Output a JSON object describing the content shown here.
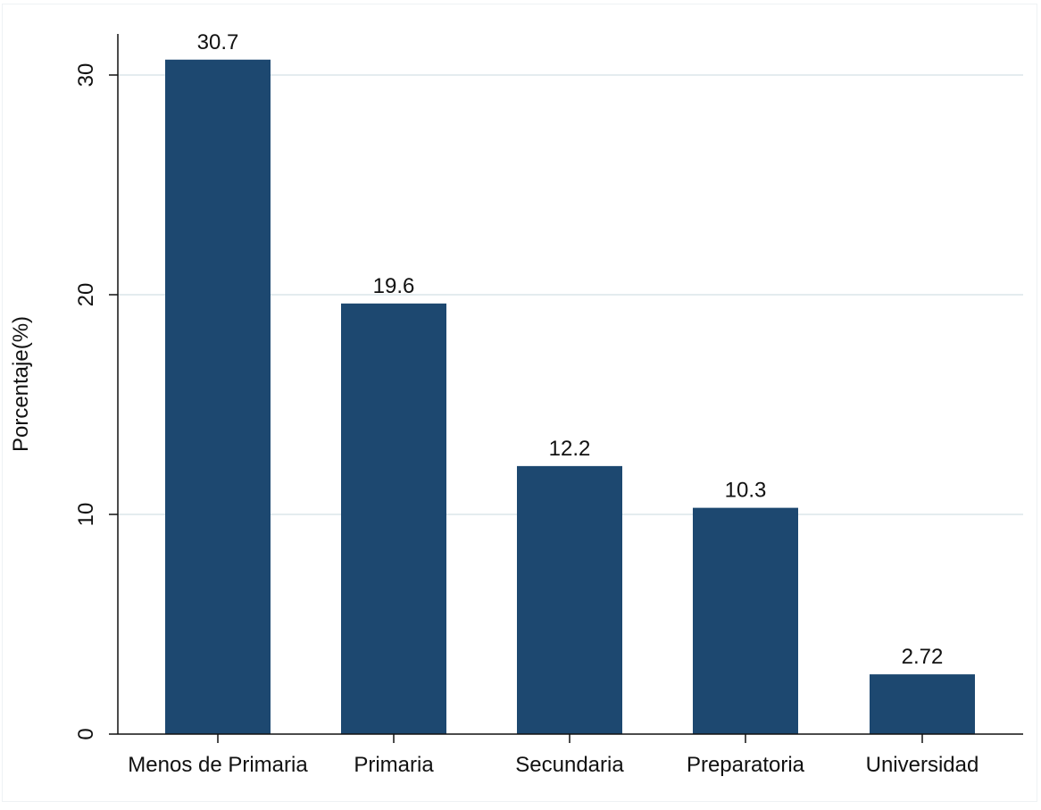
{
  "chart_data": {
    "type": "bar",
    "categories": [
      "Menos de Primaria",
      "Primaria",
      "Secundaria",
      "Preparatoria",
      "Universidad"
    ],
    "values": [
      30.7,
      19.6,
      12.2,
      10.3,
      2.72
    ],
    "value_labels": [
      "30.7",
      "19.6",
      "12.2",
      "10.3",
      "2.72"
    ],
    "title": "",
    "xlabel": "",
    "ylabel": "Porcentaje(%)",
    "ylim": [
      0,
      32
    ],
    "yticks": [
      0,
      10,
      20,
      30
    ],
    "ytick_labels": [
      "0",
      "10",
      "20",
      "30"
    ],
    "grid": true,
    "bar_color": "#1d4870",
    "grid_color": "#e4ecef"
  }
}
